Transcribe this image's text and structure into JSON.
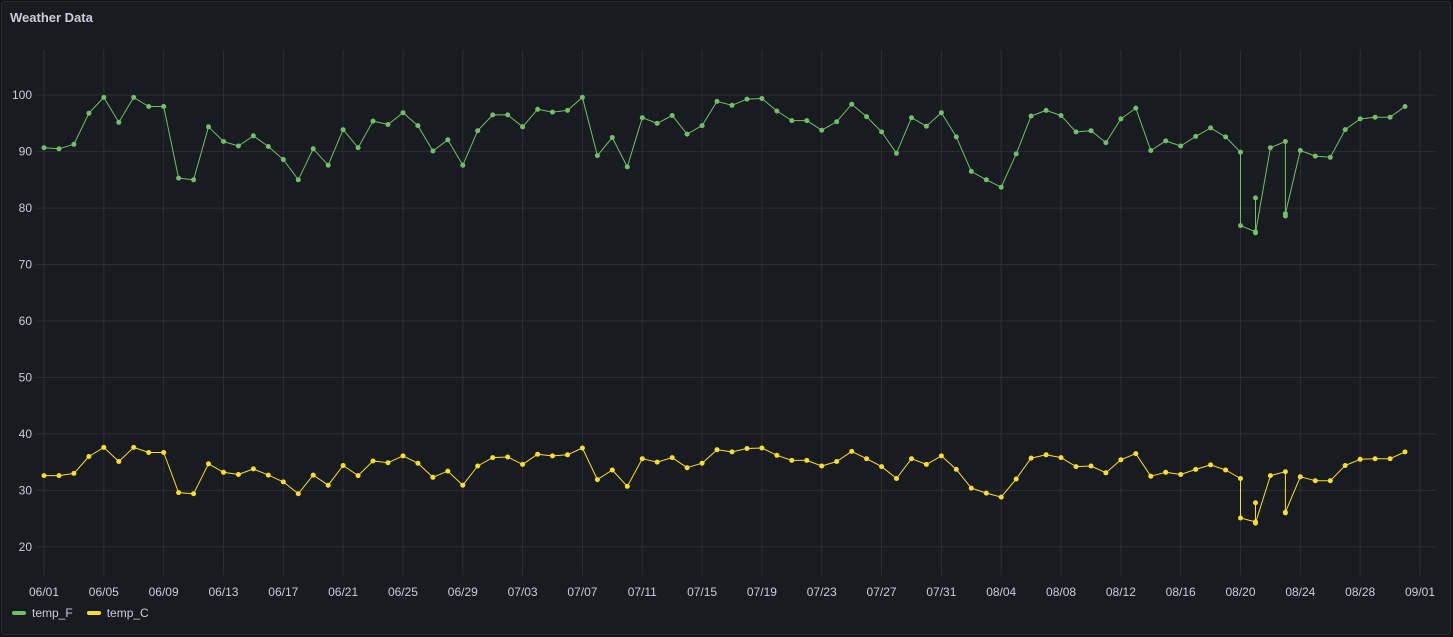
{
  "panel": {
    "title": "Weather Data"
  },
  "colors": {
    "temp_F": "#73bf69",
    "temp_C": "#fade2a",
    "grid": "#2c2f35",
    "background": "#181b1f"
  },
  "chart_data": {
    "type": "line",
    "title": "Weather Data",
    "xlabel": "",
    "ylabel": "",
    "x_start": "2024-06-01",
    "x_end": "2024-09-01",
    "ylim": [
      15,
      108
    ],
    "yticks": [
      20,
      30,
      40,
      50,
      60,
      70,
      80,
      90,
      100
    ],
    "xticks": [
      "06/01",
      "06/05",
      "06/09",
      "06/13",
      "06/17",
      "06/21",
      "06/25",
      "06/29",
      "07/03",
      "07/07",
      "07/11",
      "07/15",
      "07/19",
      "07/23",
      "07/27",
      "07/31",
      "08/04",
      "08/08",
      "08/12",
      "08/16",
      "08/20",
      "08/24",
      "08/28",
      "09/01"
    ],
    "grid": true,
    "legend_position": "bottom-left",
    "series": [
      {
        "name": "temp_F",
        "points": [
          [
            "06/01",
            90.7
          ],
          [
            "06/02",
            90.5
          ],
          [
            "06/03",
            91.3
          ],
          [
            "06/04",
            96.8
          ],
          [
            "06/05",
            99.6
          ],
          [
            "06/06",
            95.2
          ],
          [
            "06/07",
            99.6
          ],
          [
            "06/08",
            98.0
          ],
          [
            "06/09",
            98.0
          ],
          [
            "06/10",
            85.3
          ],
          [
            "06/11",
            85.0
          ],
          [
            "06/12",
            94.4
          ],
          [
            "06/13",
            91.8
          ],
          [
            "06/14",
            91.0
          ],
          [
            "06/15",
            92.8
          ],
          [
            "06/16",
            90.9
          ],
          [
            "06/17",
            88.6
          ],
          [
            "06/18",
            85.0
          ],
          [
            "06/19",
            90.5
          ],
          [
            "06/20",
            87.6
          ],
          [
            "06/21",
            93.9
          ],
          [
            "06/22",
            90.7
          ],
          [
            "06/23",
            95.4
          ],
          [
            "06/24",
            94.8
          ],
          [
            "06/25",
            96.9
          ],
          [
            "06/26",
            94.6
          ],
          [
            "06/27",
            90.1
          ],
          [
            "06/28",
            92.1
          ],
          [
            "06/29",
            87.6
          ],
          [
            "06/30",
            93.7
          ],
          [
            "07/01",
            96.5
          ],
          [
            "07/02",
            96.5
          ],
          [
            "07/03",
            94.4
          ],
          [
            "07/04",
            97.5
          ],
          [
            "07/05",
            97.0
          ],
          [
            "07/06",
            97.3
          ],
          [
            "07/07",
            99.6
          ],
          [
            "07/08",
            89.3
          ],
          [
            "07/09",
            92.5
          ],
          [
            "07/10",
            87.3
          ],
          [
            "07/11",
            96.0
          ],
          [
            "07/12",
            95.0
          ],
          [
            "07/13",
            96.4
          ],
          [
            "07/14",
            93.1
          ],
          [
            "07/15",
            94.6
          ],
          [
            "07/16",
            98.9
          ],
          [
            "07/17",
            98.2
          ],
          [
            "07/18",
            99.3
          ],
          [
            "07/19",
            99.4
          ],
          [
            "07/20",
            97.2
          ],
          [
            "07/21",
            95.5
          ],
          [
            "07/22",
            95.5
          ],
          [
            "07/23",
            93.8
          ],
          [
            "07/24",
            95.3
          ],
          [
            "07/25",
            98.4
          ],
          [
            "07/26",
            96.2
          ],
          [
            "07/27",
            93.5
          ],
          [
            "07/28",
            89.7
          ],
          [
            "07/29",
            96.0
          ],
          [
            "07/30",
            94.5
          ],
          [
            "07/31",
            96.9
          ],
          [
            "08/01",
            92.6
          ],
          [
            "08/02",
            86.5
          ],
          [
            "08/03",
            85.0
          ],
          [
            "08/04",
            83.7
          ],
          [
            "08/05",
            89.6
          ],
          [
            "08/06",
            96.3
          ],
          [
            "08/07",
            97.3
          ],
          [
            "08/08",
            96.4
          ],
          [
            "08/09",
            93.5
          ],
          [
            "08/10",
            93.7
          ],
          [
            "08/11",
            91.6
          ],
          [
            "08/12",
            95.8
          ],
          [
            "08/13",
            97.7
          ],
          [
            "08/14",
            90.2
          ],
          [
            "08/15",
            91.9
          ],
          [
            "08/16",
            91.0
          ],
          [
            "08/17",
            92.7
          ],
          [
            "08/18",
            94.2
          ],
          [
            "08/19",
            92.6
          ],
          [
            "08/20",
            89.9
          ],
          [
            "08/20",
            76.9
          ],
          [
            "08/21",
            75.8
          ],
          [
            "08/21",
            81.8
          ],
          [
            "08/21",
            75.6
          ],
          [
            "08/22",
            90.7
          ],
          [
            "08/23",
            91.8
          ],
          [
            "08/23",
            78.6
          ],
          [
            "08/23",
            79.0
          ],
          [
            "08/24",
            90.2
          ],
          [
            "08/25",
            89.2
          ],
          [
            "08/26",
            89.0
          ],
          [
            "08/27",
            93.9
          ],
          [
            "08/28",
            95.8
          ],
          [
            "08/29",
            96.1
          ],
          [
            "08/30",
            96.1
          ],
          [
            "08/31",
            98.0
          ]
        ]
      },
      {
        "name": "temp_C",
        "points": [
          [
            "06/01",
            32.6
          ],
          [
            "06/02",
            32.6
          ],
          [
            "06/03",
            33.0
          ],
          [
            "06/04",
            36.0
          ],
          [
            "06/05",
            37.6
          ],
          [
            "06/06",
            35.1
          ],
          [
            "06/07",
            37.6
          ],
          [
            "06/08",
            36.7
          ],
          [
            "06/09",
            36.7
          ],
          [
            "06/10",
            29.6
          ],
          [
            "06/11",
            29.4
          ],
          [
            "06/12",
            34.7
          ],
          [
            "06/13",
            33.2
          ],
          [
            "06/14",
            32.8
          ],
          [
            "06/15",
            33.8
          ],
          [
            "06/16",
            32.7
          ],
          [
            "06/17",
            31.5
          ],
          [
            "06/18",
            29.4
          ],
          [
            "06/19",
            32.7
          ],
          [
            "06/20",
            30.9
          ],
          [
            "06/21",
            34.4
          ],
          [
            "06/22",
            32.6
          ],
          [
            "06/23",
            35.2
          ],
          [
            "06/24",
            34.9
          ],
          [
            "06/25",
            36.1
          ],
          [
            "06/26",
            34.8
          ],
          [
            "06/27",
            32.3
          ],
          [
            "06/28",
            33.4
          ],
          [
            "06/29",
            30.9
          ],
          [
            "06/30",
            34.3
          ],
          [
            "07/01",
            35.8
          ],
          [
            "07/02",
            35.9
          ],
          [
            "07/03",
            34.6
          ],
          [
            "07/04",
            36.4
          ],
          [
            "07/05",
            36.1
          ],
          [
            "07/06",
            36.3
          ],
          [
            "07/07",
            37.5
          ],
          [
            "07/08",
            31.9
          ],
          [
            "07/09",
            33.6
          ],
          [
            "07/10",
            30.7
          ],
          [
            "07/11",
            35.6
          ],
          [
            "07/12",
            35.0
          ],
          [
            "07/13",
            35.8
          ],
          [
            "07/14",
            34.0
          ],
          [
            "07/15",
            34.8
          ],
          [
            "07/16",
            37.2
          ],
          [
            "07/17",
            36.8
          ],
          [
            "07/18",
            37.4
          ],
          [
            "07/19",
            37.5
          ],
          [
            "07/20",
            36.2
          ],
          [
            "07/21",
            35.3
          ],
          [
            "07/22",
            35.3
          ],
          [
            "07/23",
            34.3
          ],
          [
            "07/24",
            35.1
          ],
          [
            "07/25",
            36.9
          ],
          [
            "07/26",
            35.6
          ],
          [
            "07/27",
            34.2
          ],
          [
            "07/28",
            32.1
          ],
          [
            "07/29",
            35.6
          ],
          [
            "07/30",
            34.6
          ],
          [
            "07/31",
            36.1
          ],
          [
            "08/01",
            33.7
          ],
          [
            "08/02",
            30.4
          ],
          [
            "08/03",
            29.5
          ],
          [
            "08/04",
            28.8
          ],
          [
            "08/05",
            32.0
          ],
          [
            "08/06",
            35.7
          ],
          [
            "08/07",
            36.3
          ],
          [
            "08/08",
            35.8
          ],
          [
            "08/09",
            34.2
          ],
          [
            "08/10",
            34.3
          ],
          [
            "08/11",
            33.1
          ],
          [
            "08/12",
            35.4
          ],
          [
            "08/13",
            36.5
          ],
          [
            "08/14",
            32.5
          ],
          [
            "08/15",
            33.2
          ],
          [
            "08/16",
            32.8
          ],
          [
            "08/17",
            33.7
          ],
          [
            "08/18",
            34.5
          ],
          [
            "08/19",
            33.6
          ],
          [
            "08/20",
            32.1
          ],
          [
            "08/20",
            25.1
          ],
          [
            "08/21",
            24.4
          ],
          [
            "08/21",
            27.8
          ],
          [
            "08/21",
            24.2
          ],
          [
            "08/22",
            32.6
          ],
          [
            "08/23",
            33.3
          ],
          [
            "08/23",
            26.0
          ],
          [
            "08/23",
            26.1
          ],
          [
            "08/24",
            32.4
          ],
          [
            "08/25",
            31.7
          ],
          [
            "08/26",
            31.7
          ],
          [
            "08/27",
            34.4
          ],
          [
            "08/28",
            35.5
          ],
          [
            "08/29",
            35.6
          ],
          [
            "08/30",
            35.6
          ],
          [
            "08/31",
            36.8
          ]
        ]
      }
    ]
  }
}
